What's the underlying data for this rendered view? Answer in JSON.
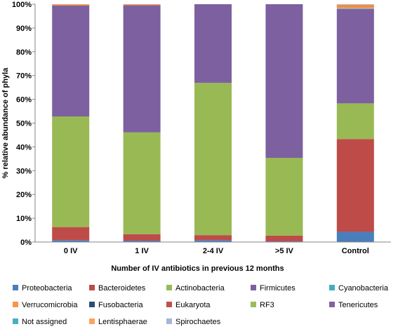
{
  "chart_data": {
    "type": "bar",
    "stacked": true,
    "percent": true,
    "xlabel": "Number of IV antibiotics in previous 12 months",
    "ylabel": "% relative abundance of phyla",
    "ylim": [
      0,
      100
    ],
    "yticks": [
      "0%",
      "10%",
      "20%",
      "30%",
      "40%",
      "50%",
      "60%",
      "70%",
      "80%",
      "90%",
      "100%"
    ],
    "categories": [
      "0 IV",
      "1 IV",
      "2-4 IV",
      ">5 IV",
      "Control"
    ],
    "grid": false,
    "legend_position": "bottom",
    "series": [
      {
        "name": "Proteobacteria",
        "color": "#4a7ebb",
        "values": [
          0.8,
          0.6,
          0.8,
          0.3,
          4.3
        ]
      },
      {
        "name": "Bacteroidetes",
        "color": "#be4b48",
        "values": [
          5.5,
          2.7,
          2.1,
          2.4,
          39.0
        ]
      },
      {
        "name": "Actinobacteria",
        "color": "#98b954",
        "values": [
          46.5,
          42.8,
          64.0,
          32.7,
          15.0
        ]
      },
      {
        "name": "Firmicutes",
        "color": "#7d60a0",
        "values": [
          46.7,
          53.5,
          33.1,
          64.6,
          39.7
        ]
      },
      {
        "name": "Cyanobacteria",
        "color": "#46aac4",
        "values": [
          0,
          0,
          0,
          0,
          0.2
        ]
      },
      {
        "name": "Verrucomicrobia",
        "color": "#f79646",
        "values": [
          0.5,
          0.4,
          0,
          0,
          1.0
        ]
      },
      {
        "name": "Fusobacteria",
        "color": "#2c4d75",
        "values": [
          0,
          0,
          0,
          0,
          0.1
        ]
      },
      {
        "name": "Eukaryota",
        "color": "#c0504d",
        "values": [
          0,
          0,
          0,
          0,
          0
        ]
      },
      {
        "name": "RF3",
        "color": "#9bbb59",
        "values": [
          0,
          0,
          0,
          0,
          0
        ]
      },
      {
        "name": "Tenericutes",
        "color": "#8064a2",
        "values": [
          0,
          0,
          0,
          0,
          0.2
        ]
      },
      {
        "name": "Not assigned",
        "color": "#4bacc6",
        "values": [
          0,
          0,
          0,
          0,
          0
        ]
      },
      {
        "name": "Lentisphaerae",
        "color": "#f9a55a",
        "values": [
          0,
          0,
          0,
          0,
          0.5
        ]
      },
      {
        "name": "Spirochaetes",
        "color": "#a5b6d6",
        "values": [
          0,
          0,
          0,
          0,
          0
        ]
      }
    ]
  }
}
